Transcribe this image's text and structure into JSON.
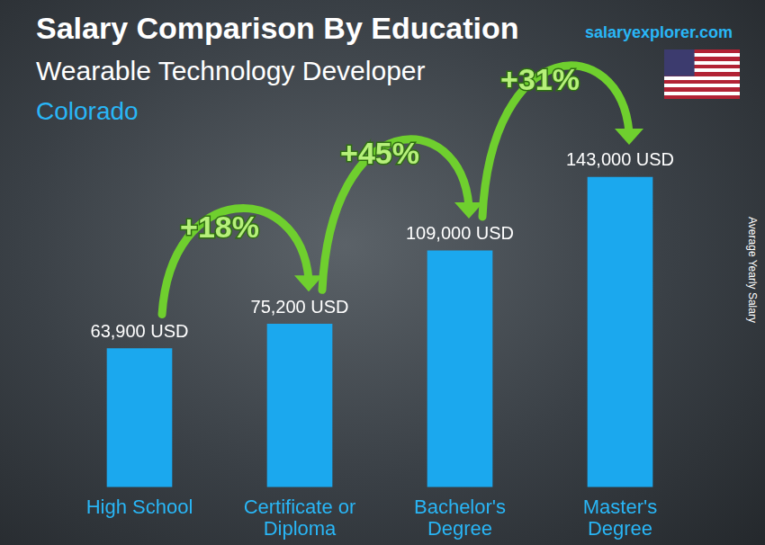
{
  "chart_data": {
    "type": "bar",
    "title": "Salary Comparison By Education",
    "subtitle": "Wearable Technology Developer",
    "location": "Colorado",
    "source": "salaryexplorer.com",
    "y_label": "Average Yearly Salary",
    "categories": [
      "High School",
      "Certificate or Diploma",
      "Bachelor's Degree",
      "Master's Degree"
    ],
    "values": [
      63900,
      75200,
      109000,
      143000
    ],
    "value_labels": [
      "63,900 USD",
      "75,200 USD",
      "109,000 USD",
      "143,000 USD"
    ],
    "data_labels": true,
    "color": "#1ba8ee",
    "annotations": [
      "+18%",
      "+45%",
      "+31%"
    ],
    "ylim": [
      0,
      160000
    ],
    "yticks": [
      0,
      160000
    ],
    "grid": false,
    "tick_labels": "x"
  }
}
